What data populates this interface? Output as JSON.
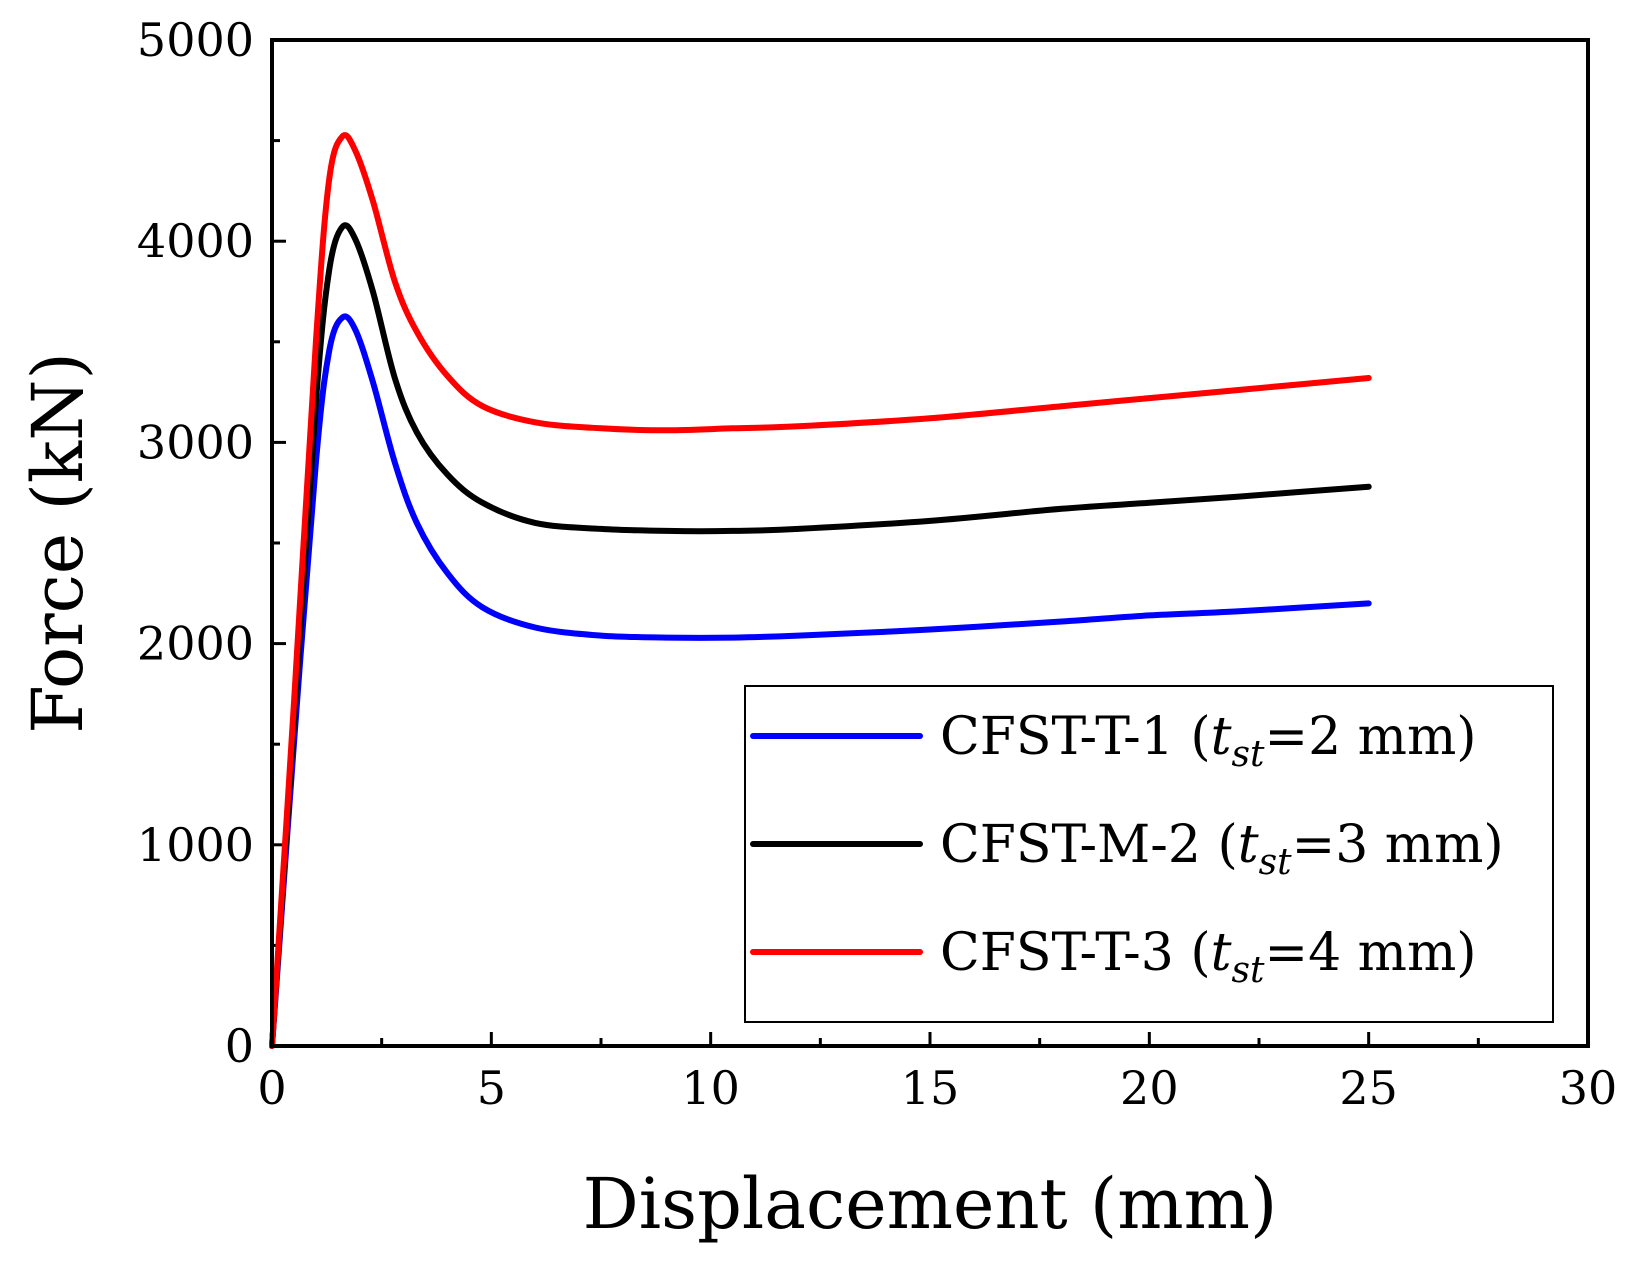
{
  "chart_data": {
    "type": "line",
    "title": "",
    "xlabel": "Displacement (mm)",
    "ylabel": "Force (kN)",
    "xlim": [
      0,
      30
    ],
    "ylim": [
      0,
      5000
    ],
    "xticks": [
      0,
      5,
      10,
      15,
      20,
      25,
      30
    ],
    "yticks": [
      0,
      1000,
      2000,
      3000,
      4000,
      5000
    ],
    "grid": false,
    "legend_position": "bottom-right",
    "series": [
      {
        "name": "CFST-T-1",
        "label_prefix": "CFST-T-1",
        "label_var": "t",
        "label_sub": "st",
        "label_suffix": "=2 mm)",
        "color": "#0000ff",
        "points": [
          [
            0,
            0
          ],
          [
            0.5,
            1500
          ],
          [
            1.0,
            2900
          ],
          [
            1.3,
            3450
          ],
          [
            1.6,
            3620
          ],
          [
            1.9,
            3560
          ],
          [
            2.3,
            3300
          ],
          [
            2.8,
            2900
          ],
          [
            3.3,
            2600
          ],
          [
            4.0,
            2350
          ],
          [
            4.8,
            2180
          ],
          [
            6.0,
            2080
          ],
          [
            7.5,
            2040
          ],
          [
            9.0,
            2030
          ],
          [
            10.5,
            2030
          ],
          [
            12.0,
            2040
          ],
          [
            15.0,
            2070
          ],
          [
            18.0,
            2110
          ],
          [
            20.0,
            2140
          ],
          [
            22.0,
            2160
          ],
          [
            25.0,
            2200
          ]
        ]
      },
      {
        "name": "CFST-M-2",
        "label_prefix": "CFST-M-2",
        "label_var": "t",
        "label_sub": "st",
        "label_suffix": "=3 mm)",
        "color": "#000000",
        "points": [
          [
            0,
            0
          ],
          [
            0.5,
            1600
          ],
          [
            1.0,
            3200
          ],
          [
            1.3,
            3850
          ],
          [
            1.6,
            4070
          ],
          [
            1.9,
            4010
          ],
          [
            2.3,
            3750
          ],
          [
            2.8,
            3320
          ],
          [
            3.3,
            3050
          ],
          [
            4.0,
            2840
          ],
          [
            4.8,
            2700
          ],
          [
            6.0,
            2600
          ],
          [
            7.5,
            2570
          ],
          [
            9.0,
            2560
          ],
          [
            10.5,
            2560
          ],
          [
            12.0,
            2570
          ],
          [
            15.0,
            2610
          ],
          [
            18.0,
            2670
          ],
          [
            20.0,
            2700
          ],
          [
            22.0,
            2730
          ],
          [
            25.0,
            2780
          ]
        ]
      },
      {
        "name": "CFST-T-3",
        "label_prefix": "CFST-T-3",
        "label_var": "t",
        "label_sub": "st",
        "label_suffix": "=4 mm)",
        "color": "#ff0000",
        "points": [
          [
            0,
            0
          ],
          [
            0.5,
            1700
          ],
          [
            1.0,
            3500
          ],
          [
            1.3,
            4300
          ],
          [
            1.6,
            4520
          ],
          [
            1.9,
            4450
          ],
          [
            2.3,
            4200
          ],
          [
            2.8,
            3800
          ],
          [
            3.3,
            3550
          ],
          [
            4.0,
            3330
          ],
          [
            4.8,
            3180
          ],
          [
            6.0,
            3100
          ],
          [
            7.5,
            3070
          ],
          [
            9.0,
            3060
          ],
          [
            10.5,
            3070
          ],
          [
            12.0,
            3080
          ],
          [
            15.0,
            3120
          ],
          [
            18.0,
            3180
          ],
          [
            20.0,
            3220
          ],
          [
            22.0,
            3260
          ],
          [
            25.0,
            3320
          ]
        ]
      }
    ]
  }
}
